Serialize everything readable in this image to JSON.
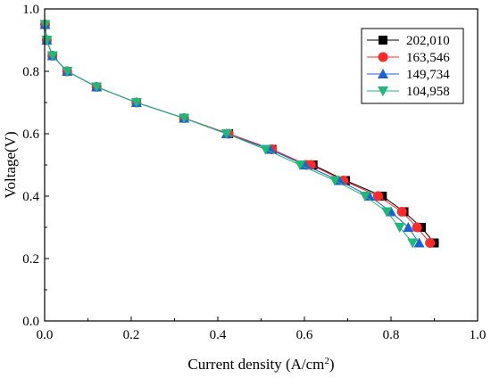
{
  "chart_data": {
    "type": "line",
    "xlabel": "Current density (A/cm",
    "xlabel_sup": "2",
    "xlabel_close": ")",
    "ylabel": "Voltage(V)",
    "xlim": [
      0.0,
      1.0
    ],
    "ylim": [
      0.0,
      1.0
    ],
    "x_ticks": [
      0.0,
      0.2,
      0.4,
      0.6,
      0.8,
      1.0
    ],
    "y_ticks": [
      0.0,
      0.2,
      0.4,
      0.6,
      0.8,
      1.0
    ],
    "x_tick_labels": [
      "0.0",
      "0.2",
      "0.4",
      "0.6",
      "0.8",
      "1.0"
    ],
    "y_tick_labels": [
      "0.0",
      "0.2",
      "0.4",
      "0.6",
      "0.8",
      "1.0"
    ],
    "grid": false,
    "legend_position": "top-right",
    "series": [
      {
        "name": "202,010",
        "marker": "square",
        "color": "#000000",
        "x": [
          0.001,
          0.005,
          0.018,
          0.052,
          0.12,
          0.212,
          0.322,
          0.425,
          0.525,
          0.605,
          0.62,
          0.695,
          0.78,
          0.83,
          0.87,
          0.9
        ],
        "y": [
          0.95,
          0.9,
          0.85,
          0.8,
          0.75,
          0.7,
          0.65,
          0.6,
          0.55,
          0.5,
          0.5,
          0.45,
          0.4,
          0.35,
          0.3,
          0.25
        ]
      },
      {
        "name": "163,546",
        "marker": "circle",
        "color": "#ff2a2a",
        "x": [
          0.001,
          0.005,
          0.018,
          0.052,
          0.12,
          0.212,
          0.322,
          0.425,
          0.525,
          0.605,
          0.615,
          0.69,
          0.77,
          0.825,
          0.86,
          0.89
        ],
        "y": [
          0.95,
          0.9,
          0.85,
          0.8,
          0.75,
          0.7,
          0.65,
          0.6,
          0.55,
          0.5,
          0.5,
          0.45,
          0.4,
          0.35,
          0.3,
          0.25
        ]
      },
      {
        "name": "149,734",
        "marker": "triangle-up",
        "color": "#1f5fd6",
        "x": [
          0.001,
          0.005,
          0.018,
          0.052,
          0.12,
          0.212,
          0.322,
          0.42,
          0.52,
          0.6,
          0.68,
          0.75,
          0.8,
          0.84,
          0.865
        ],
        "y": [
          0.95,
          0.9,
          0.85,
          0.8,
          0.75,
          0.7,
          0.65,
          0.6,
          0.55,
          0.5,
          0.45,
          0.4,
          0.35,
          0.3,
          0.25
        ]
      },
      {
        "name": "104,958",
        "marker": "triangle-down",
        "color": "#1db87a",
        "x": [
          0.001,
          0.005,
          0.018,
          0.052,
          0.12,
          0.212,
          0.322,
          0.42,
          0.51,
          0.59,
          0.67,
          0.74,
          0.79,
          0.82,
          0.85
        ],
        "y": [
          0.95,
          0.9,
          0.85,
          0.8,
          0.75,
          0.7,
          0.65,
          0.6,
          0.55,
          0.5,
          0.45,
          0.4,
          0.35,
          0.3,
          0.25
        ]
      }
    ]
  }
}
